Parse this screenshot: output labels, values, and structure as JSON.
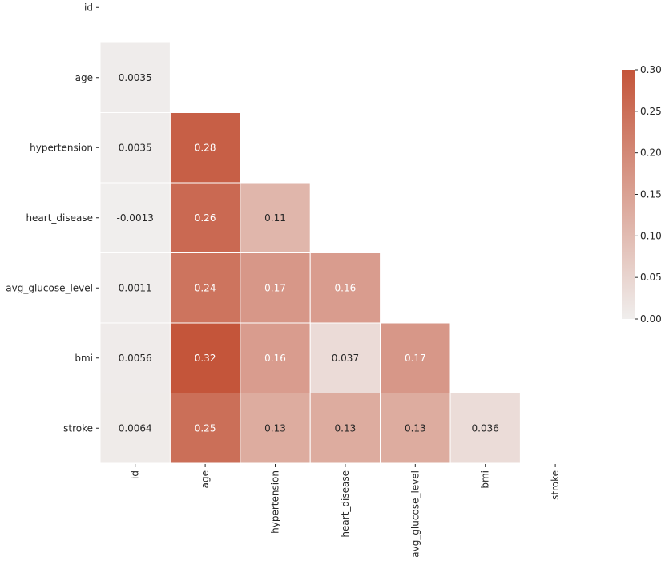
{
  "chart_data": {
    "type": "heatmap",
    "title": "",
    "labels": [
      "id",
      "age",
      "hypertension",
      "heart_disease",
      "avg_glucose_level",
      "bmi",
      "stroke"
    ],
    "mask": "upper-triangle-including-diagonal",
    "matrix": [
      [
        null,
        null,
        null,
        null,
        null,
        null,
        null
      ],
      [
        "0.0035",
        null,
        null,
        null,
        null,
        null,
        null
      ],
      [
        "0.0035",
        "0.28",
        null,
        null,
        null,
        null,
        null
      ],
      [
        "-0.0013",
        "0.26",
        "0.11",
        null,
        null,
        null,
        null
      ],
      [
        "0.0011",
        "0.24",
        "0.17",
        "0.16",
        null,
        null,
        null
      ],
      [
        "0.0056",
        "0.32",
        "0.16",
        "0.037",
        "0.17",
        null,
        null
      ],
      [
        "0.0064",
        "0.25",
        "0.13",
        "0.13",
        "0.13",
        "0.036",
        null
      ]
    ],
    "colorbar": {
      "range": [
        0,
        0.3
      ],
      "ticks": [
        "0.00",
        "0.05",
        "0.10",
        "0.15",
        "0.20",
        "0.25",
        "0.30"
      ],
      "color_low": "#f0eeed",
      "color_high": "#c4553a"
    }
  }
}
